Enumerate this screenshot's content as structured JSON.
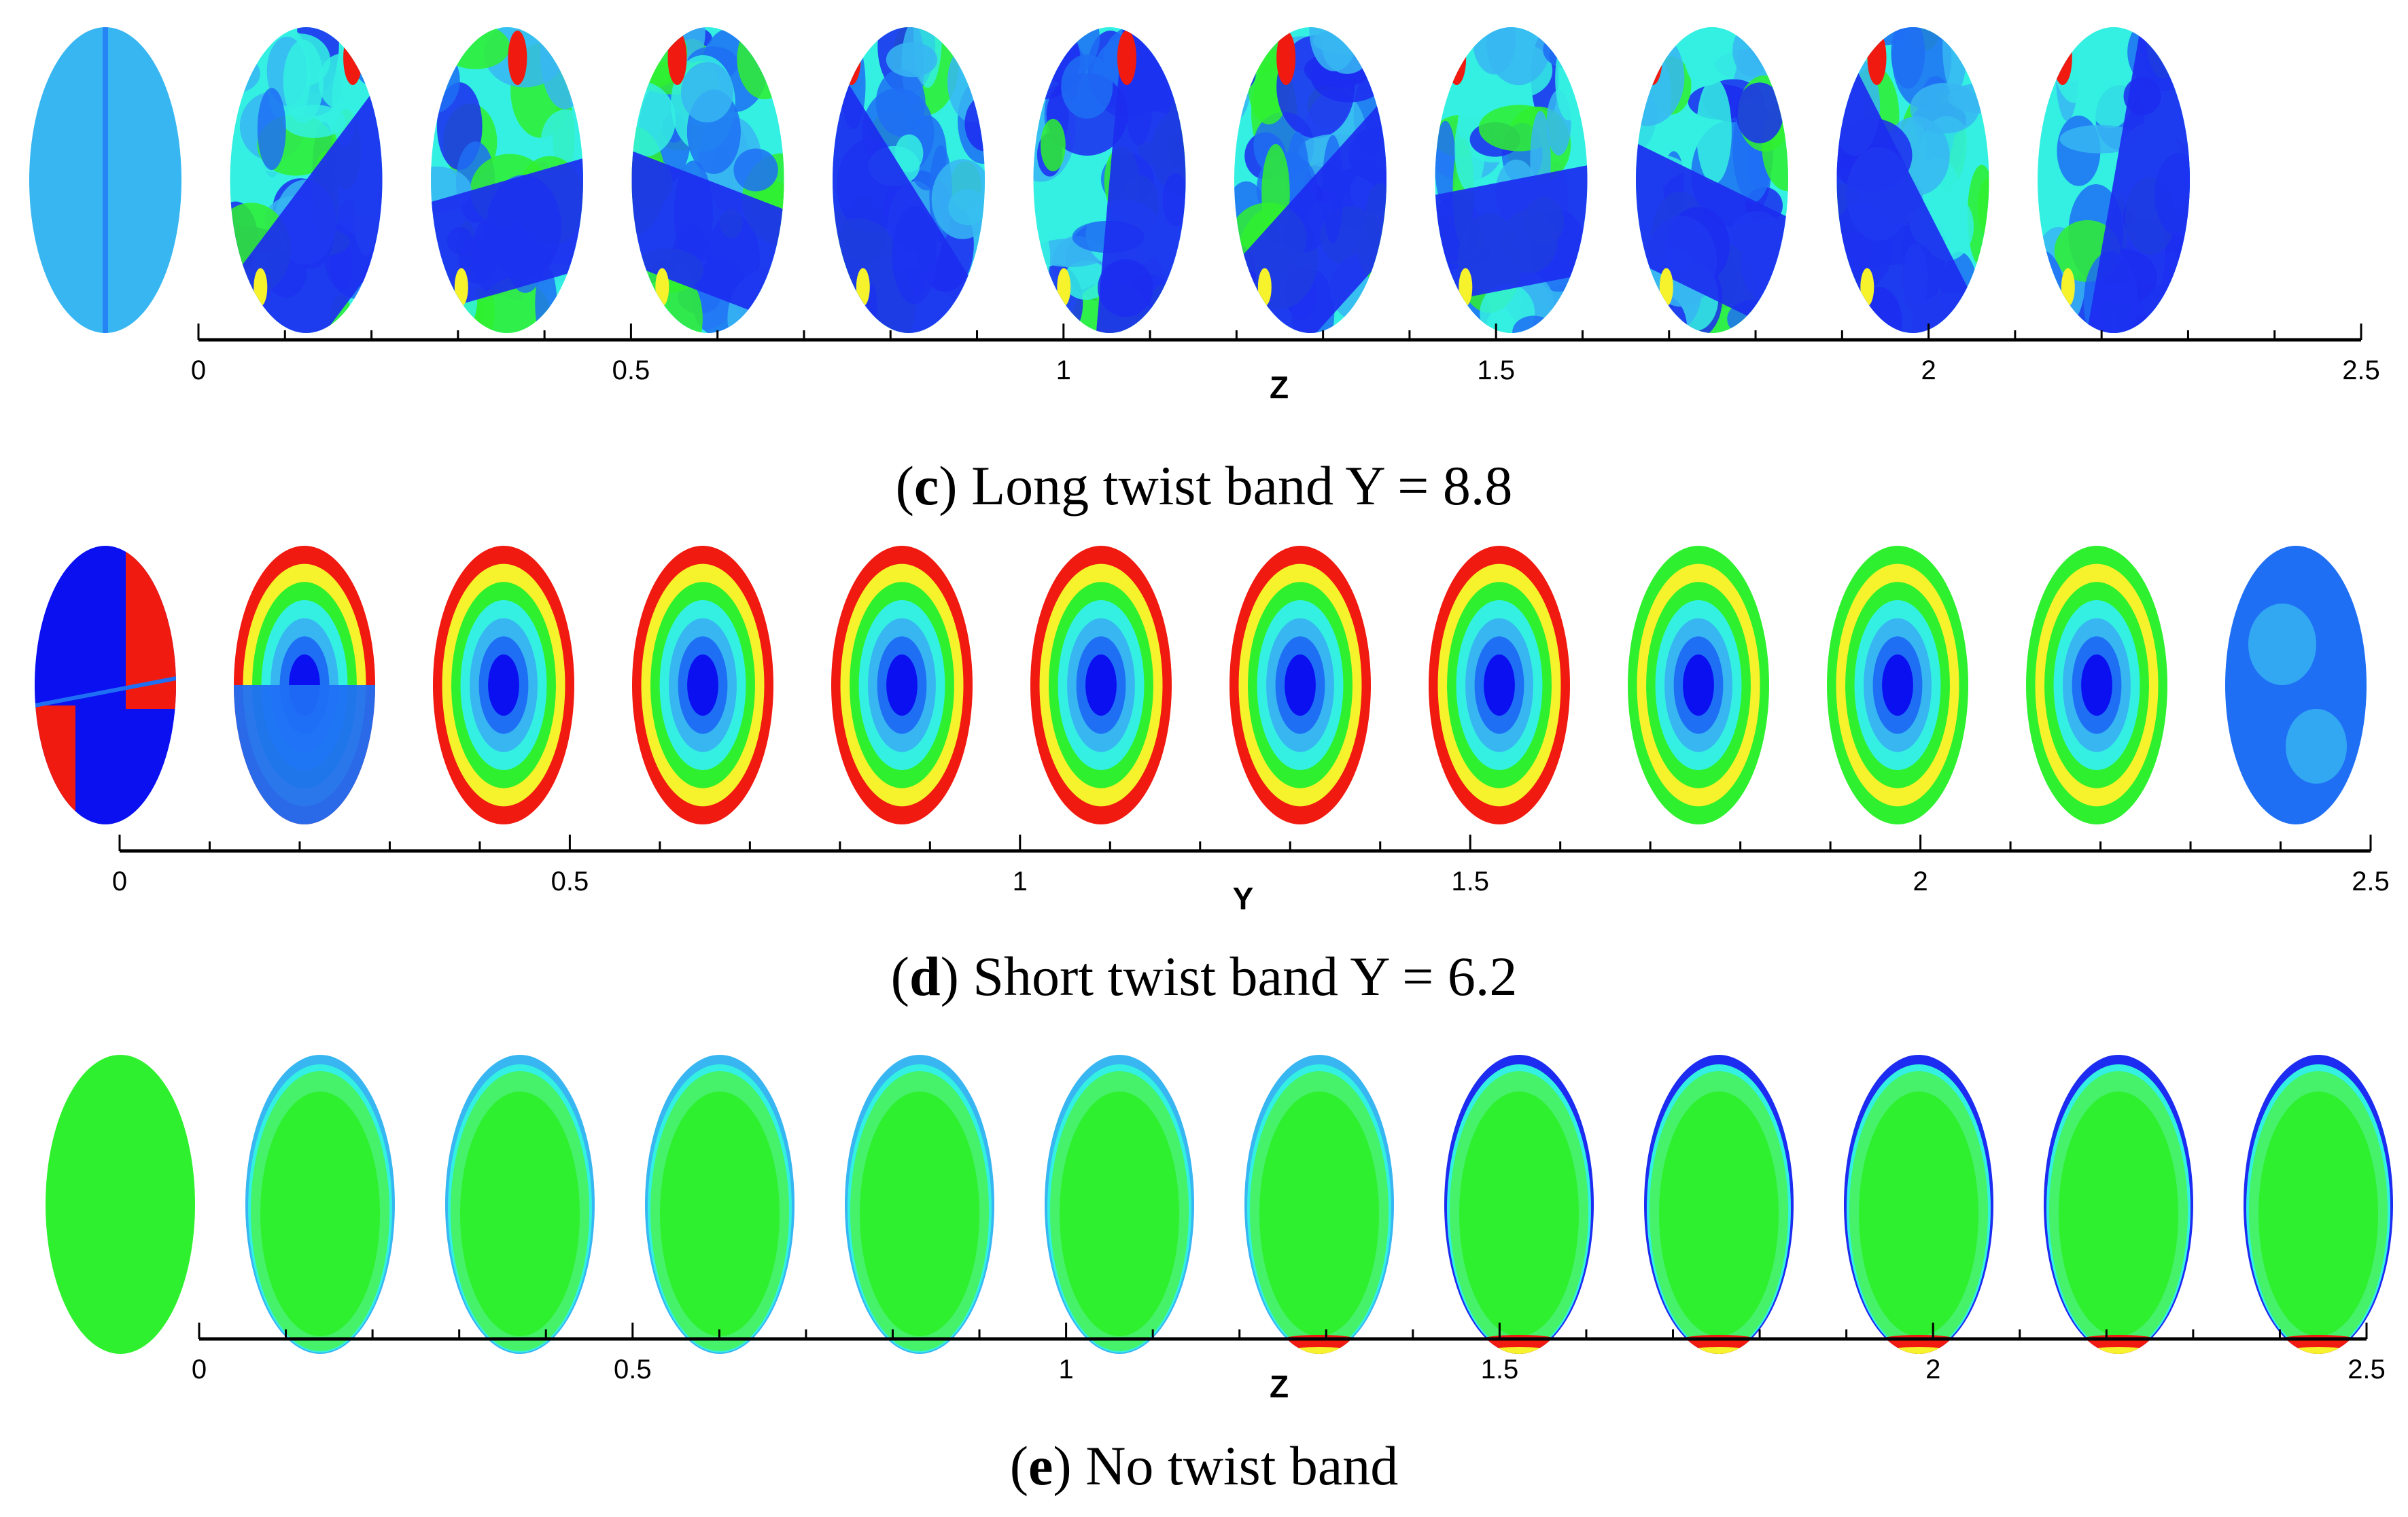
{
  "panels": [
    {
      "id": "c",
      "caption_letter": "c",
      "caption_text": " Long twist band Y = 8.8",
      "axis_label": "Z",
      "ticks": [
        "0",
        "0.5",
        "1",
        "1.5",
        "2",
        "2.5"
      ],
      "palette": [
        "#1c2cf0",
        "#1f6ff5",
        "#37b6f2",
        "#34f0e2",
        "#2ff02f",
        "#f6f22b",
        "#f01a10"
      ],
      "sections": 11
    },
    {
      "id": "d",
      "caption_letter": "d",
      "caption_text": " Short twist band Y = 6.2",
      "axis_label": "Y",
      "ticks": [
        "0",
        "0.5",
        "1",
        "1.5",
        "2",
        "2.5"
      ],
      "palette": [
        "#0a10f0",
        "#1f6ff5",
        "#37b6f2",
        "#34f0e2",
        "#2ff02f",
        "#f6f22b",
        "#f01a10"
      ],
      "sections": 12
    },
    {
      "id": "e",
      "caption_letter": "e",
      "caption_text": " No twist band",
      "axis_label": "Z",
      "ticks": [
        "0",
        "0.5",
        "1",
        "1.5",
        "2",
        "2.5"
      ],
      "palette": [
        "#1c2cf0",
        "#37b6f2",
        "#34f0e2",
        "#2ff02f",
        "#f6f22b",
        "#f01a10"
      ],
      "sections": 12
    }
  ]
}
